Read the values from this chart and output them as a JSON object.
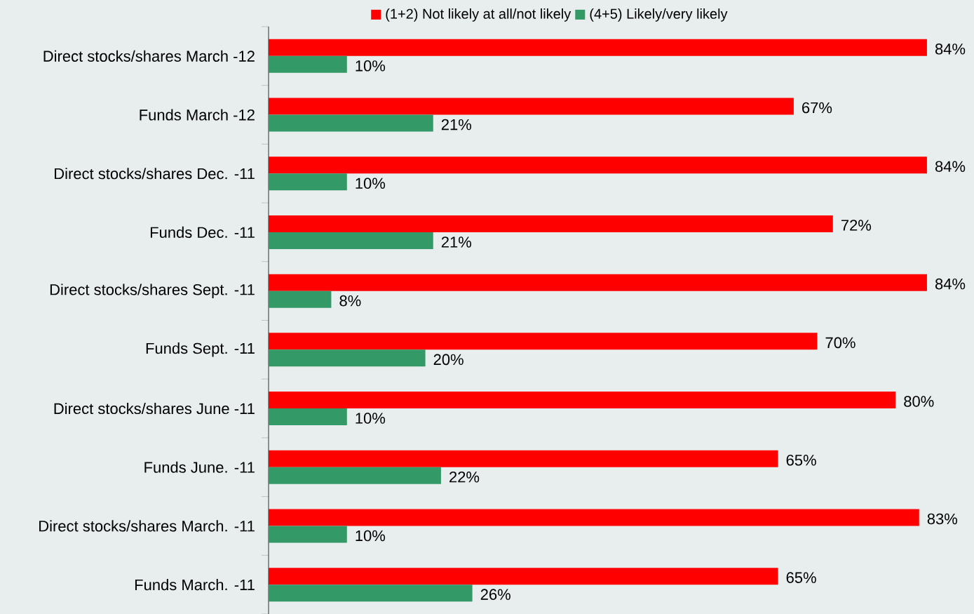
{
  "chart_data": {
    "type": "bar",
    "orientation": "horizontal",
    "legend": "top",
    "tick_labels": "y",
    "xlim": [
      0,
      90
    ],
    "categories": [
      "Direct stocks/shares March -12",
      "Funds March -12",
      "Direct stocks/shares Dec. -11",
      "Funds Dec. -11",
      "Direct stocks/shares Sept. -11",
      "Funds Sept. -11",
      "Direct stocks/shares June -11",
      "Funds June. -11",
      "Direct stocks/shares March. -11",
      "Funds March. -11"
    ],
    "series": [
      {
        "name": "(1+2) Not likely at all/not likely",
        "color": "#ff0000",
        "values": [
          84,
          67,
          84,
          72,
          84,
          70,
          80,
          65,
          83,
          65
        ],
        "value_labels": [
          "84%",
          "67%",
          "84%",
          "72%",
          "84%",
          "70%",
          "80%",
          "65%",
          "83%",
          "65%"
        ]
      },
      {
        "name": "(4+5) Likely/very likely",
        "color": "#339966",
        "values": [
          10,
          21,
          10,
          21,
          8,
          20,
          10,
          22,
          10,
          26
        ],
        "value_labels": [
          "10%",
          "21%",
          "10%",
          "21%",
          "8%",
          "20%",
          "10%",
          "22%",
          "10%",
          "26%"
        ]
      }
    ]
  }
}
